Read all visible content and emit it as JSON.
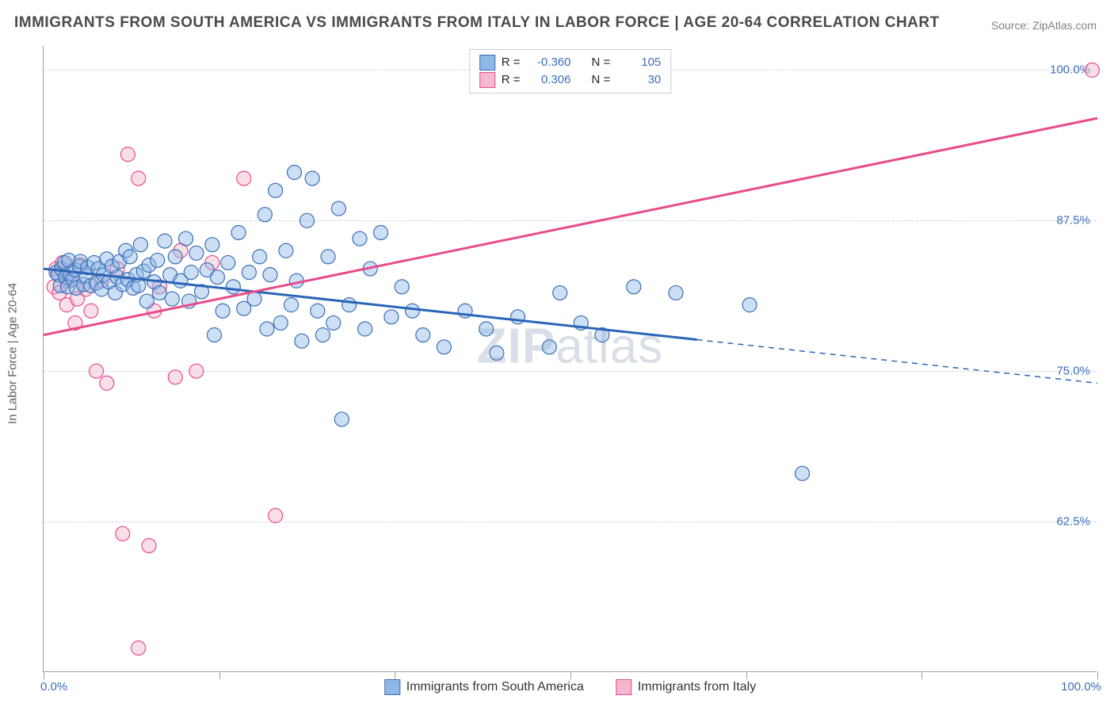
{
  "title": "IMMIGRANTS FROM SOUTH AMERICA VS IMMIGRANTS FROM ITALY IN LABOR FORCE | AGE 20-64 CORRELATION CHART",
  "source": "Source: ZipAtlas.com",
  "ylabel": "In Labor Force | Age 20-64",
  "watermark_a": "ZIP",
  "watermark_b": "atlas",
  "chart": {
    "type": "scatter",
    "xlim": [
      0,
      100
    ],
    "ylim": [
      50,
      102
    ],
    "y_ticks": [
      62.5,
      75.0,
      87.5,
      100.0
    ],
    "y_tick_labels": [
      "62.5%",
      "75.0%",
      "87.5%",
      "100.0%"
    ],
    "x_axis_min_label": "0.0%",
    "x_axis_max_label": "100.0%",
    "x_ticks": [
      0,
      16.67,
      33.33,
      50,
      66.67,
      83.33,
      100
    ],
    "background_color": "#ffffff",
    "grid_color": "#d0d5db",
    "axis_color": "#9aa1a9",
    "tick_label_color": "#3b6fb6",
    "marker_radius": 9,
    "marker_opacity": 0.45,
    "series": [
      {
        "name": "Immigrants from South America",
        "color_fill": "#8fb7e6",
        "color_stroke": "#3b6fb6",
        "r_value": "-0.360",
        "n_value": "105",
        "trendline": {
          "color": "#2b65b7",
          "width": 3,
          "solid_x_end": 62,
          "y_start": 83.5,
          "y_end": 74.0
        },
        "points": [
          [
            1.2,
            83.2
          ],
          [
            1.4,
            83.0
          ],
          [
            1.6,
            82.1
          ],
          [
            1.7,
            83.5
          ],
          [
            2.0,
            84.0
          ],
          [
            2.1,
            82.8
          ],
          [
            2.3,
            82.0
          ],
          [
            2.4,
            84.2
          ],
          [
            2.5,
            83.1
          ],
          [
            2.8,
            82.6
          ],
          [
            3.0,
            83.4
          ],
          [
            3.1,
            81.9
          ],
          [
            3.4,
            83.7
          ],
          [
            3.5,
            84.1
          ],
          [
            3.8,
            82.2
          ],
          [
            4.0,
            82.9
          ],
          [
            4.2,
            83.6
          ],
          [
            4.5,
            82.1
          ],
          [
            4.8,
            84.0
          ],
          [
            5.0,
            82.3
          ],
          [
            5.2,
            83.5
          ],
          [
            5.5,
            81.8
          ],
          [
            5.7,
            83.0
          ],
          [
            6.0,
            84.3
          ],
          [
            6.2,
            82.4
          ],
          [
            6.5,
            83.7
          ],
          [
            6.8,
            81.5
          ],
          [
            7.0,
            82.8
          ],
          [
            7.2,
            84.1
          ],
          [
            7.5,
            82.2
          ],
          [
            7.8,
            85.0
          ],
          [
            8.0,
            82.6
          ],
          [
            8.2,
            84.5
          ],
          [
            8.5,
            81.9
          ],
          [
            8.8,
            83.0
          ],
          [
            9.0,
            82.1
          ],
          [
            9.2,
            85.5
          ],
          [
            9.5,
            83.3
          ],
          [
            9.8,
            80.8
          ],
          [
            10.0,
            83.8
          ],
          [
            10.5,
            82.4
          ],
          [
            10.8,
            84.2
          ],
          [
            11.0,
            81.5
          ],
          [
            11.5,
            85.8
          ],
          [
            12.0,
            83.0
          ],
          [
            12.2,
            81.0
          ],
          [
            12.5,
            84.5
          ],
          [
            13.0,
            82.5
          ],
          [
            13.5,
            86.0
          ],
          [
            13.8,
            80.8
          ],
          [
            14.0,
            83.2
          ],
          [
            14.5,
            84.8
          ],
          [
            15.0,
            81.6
          ],
          [
            15.5,
            83.4
          ],
          [
            16.0,
            85.5
          ],
          [
            16.2,
            78.0
          ],
          [
            16.5,
            82.8
          ],
          [
            17.0,
            80.0
          ],
          [
            17.5,
            84.0
          ],
          [
            18.0,
            82.0
          ],
          [
            18.5,
            86.5
          ],
          [
            19.0,
            80.2
          ],
          [
            19.5,
            83.2
          ],
          [
            20.0,
            81.0
          ],
          [
            20.5,
            84.5
          ],
          [
            21.0,
            88.0
          ],
          [
            21.2,
            78.5
          ],
          [
            21.5,
            83.0
          ],
          [
            22.0,
            90.0
          ],
          [
            22.5,
            79.0
          ],
          [
            23.0,
            85.0
          ],
          [
            23.5,
            80.5
          ],
          [
            23.8,
            91.5
          ],
          [
            24.0,
            82.5
          ],
          [
            24.5,
            77.5
          ],
          [
            25.0,
            87.5
          ],
          [
            25.5,
            91.0
          ],
          [
            26.0,
            80.0
          ],
          [
            26.5,
            78.0
          ],
          [
            27.0,
            84.5
          ],
          [
            27.5,
            79.0
          ],
          [
            28.0,
            88.5
          ],
          [
            28.3,
            71.0
          ],
          [
            29.0,
            80.5
          ],
          [
            30.0,
            86.0
          ],
          [
            30.5,
            78.5
          ],
          [
            31.0,
            83.5
          ],
          [
            32.0,
            86.5
          ],
          [
            33.0,
            79.5
          ],
          [
            34.0,
            82.0
          ],
          [
            35.0,
            80.0
          ],
          [
            36.0,
            78.0
          ],
          [
            38.0,
            77.0
          ],
          [
            40.0,
            80.0
          ],
          [
            42.0,
            78.5
          ],
          [
            43.0,
            76.5
          ],
          [
            45.0,
            79.5
          ],
          [
            48.0,
            77.0
          ],
          [
            49.0,
            81.5
          ],
          [
            51.0,
            79.0
          ],
          [
            53.0,
            78.0
          ],
          [
            56.0,
            82.0
          ],
          [
            60.0,
            81.5
          ],
          [
            67.0,
            80.5
          ],
          [
            72.0,
            66.5
          ]
        ]
      },
      {
        "name": "Immigrants from Italy",
        "color_fill": "#f5b8cf",
        "color_stroke": "#e84b8a",
        "r_value": "0.306",
        "n_value": "30",
        "trendline": {
          "color": "#e84b8a",
          "width": 3,
          "solid_x_end": 100,
          "y_start": 78.0,
          "y_end": 96.0
        },
        "points": [
          [
            1.0,
            82.0
          ],
          [
            1.2,
            83.5
          ],
          [
            1.5,
            81.5
          ],
          [
            1.8,
            84.0
          ],
          [
            2.0,
            83.0
          ],
          [
            2.2,
            80.5
          ],
          [
            2.5,
            82.5
          ],
          [
            3.0,
            79.0
          ],
          [
            3.2,
            81.0
          ],
          [
            3.5,
            83.8
          ],
          [
            4.0,
            81.8
          ],
          [
            4.5,
            80.0
          ],
          [
            5.0,
            75.0
          ],
          [
            5.5,
            82.5
          ],
          [
            6.0,
            74.0
          ],
          [
            7.0,
            83.5
          ],
          [
            7.5,
            61.5
          ],
          [
            8.0,
            93.0
          ],
          [
            9.0,
            91.0
          ],
          [
            9.0,
            52.0
          ],
          [
            10.0,
            60.5
          ],
          [
            10.5,
            80.0
          ],
          [
            11.0,
            82.0
          ],
          [
            12.5,
            74.5
          ],
          [
            13.0,
            85.0
          ],
          [
            14.5,
            75.0
          ],
          [
            16.0,
            84.0
          ],
          [
            19.0,
            91.0
          ],
          [
            22.0,
            63.0
          ],
          [
            99.5,
            100.0
          ]
        ]
      }
    ],
    "legend_top": {
      "r_label": "R =",
      "n_label": "N ="
    },
    "legend_bottom": [
      {
        "label": "Immigrants from South America",
        "fill": "#8fb7e6",
        "stroke": "#3b6fb6"
      },
      {
        "label": "Immigrants from Italy",
        "fill": "#f5b8cf",
        "stroke": "#e84b8a"
      }
    ]
  }
}
